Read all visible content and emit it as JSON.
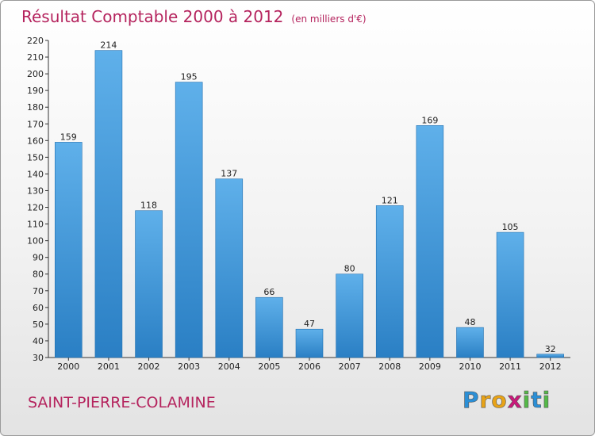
{
  "title": "Résultat Comptable 2000 à 2012",
  "unit": "(en milliers d'€)",
  "commune": "SAINT-PIERRE-COLAMINE",
  "logo": {
    "letters": [
      "P",
      "r",
      "o",
      "x",
      "i",
      "t",
      "i"
    ],
    "colors": [
      "#2b8fd6",
      "#e8a317",
      "#e8a317",
      "#c9197a",
      "#54b947",
      "#2b8fd6",
      "#54b947"
    ]
  },
  "chart_data": {
    "type": "bar",
    "categories": [
      "2000",
      "2001",
      "2002",
      "2003",
      "2004",
      "2005",
      "2006",
      "2007",
      "2008",
      "2009",
      "2010",
      "2011",
      "2012"
    ],
    "values": [
      159,
      214,
      118,
      195,
      137,
      66,
      47,
      80,
      121,
      169,
      48,
      105,
      32
    ],
    "ylim": [
      30,
      220
    ],
    "yticks": [
      30,
      40,
      50,
      60,
      70,
      80,
      90,
      100,
      110,
      120,
      130,
      140,
      150,
      160,
      170,
      180,
      190,
      200,
      210,
      220
    ],
    "grid": false,
    "bar_color": "#3a94d8"
  }
}
